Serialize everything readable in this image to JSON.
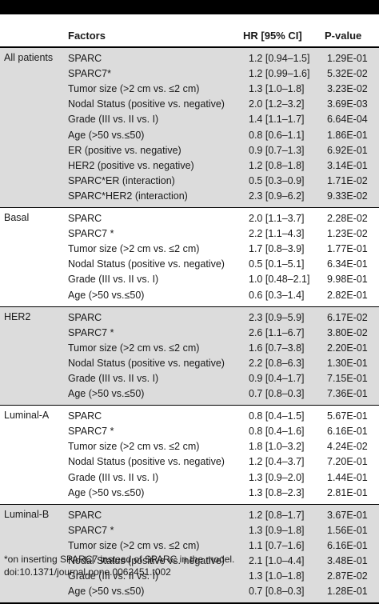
{
  "header": {
    "factors": "Factors",
    "hr": "HR [95% CI]",
    "p": "P-value"
  },
  "groups": [
    {
      "label": "All patients",
      "rows": [
        {
          "factor": "SPARC",
          "hr": "1.2 [0.94–1.5]",
          "p": "1.29E-01"
        },
        {
          "factor": "SPARC7*",
          "hr": "1.2 [0.99–1.6]",
          "p": "5.32E-02"
        },
        {
          "factor": "Tumor size (>2 cm vs. ≤2 cm)",
          "hr": "1.3 [1.0–1.8]",
          "p": "3.23E-02"
        },
        {
          "factor": "Nodal Status (positive vs. negative)",
          "hr": "2.0 [1.2–3.2]",
          "p": "3.69E-03"
        },
        {
          "factor": "Grade (III vs. II vs. I)",
          "hr": "1.4 [1.1–1.7]",
          "p": "6.64E-04"
        },
        {
          "factor": "Age (>50 vs.≤50)",
          "hr": "0.8 [0.6–1.1]",
          "p": "1.86E-01"
        },
        {
          "factor": "ER (positive vs. negative)",
          "hr": "0.9 [0.7–1.3]",
          "p": "6.92E-01"
        },
        {
          "factor": "HER2 (positive vs. negative)",
          "hr": "1.2 [0.8–1.8]",
          "p": "3.14E-01"
        },
        {
          "factor": "SPARC*ER (interaction)",
          "hr": "0.5 [0.3–0.9]",
          "p": "1.71E-02"
        },
        {
          "factor": "SPARC*HER2 (interaction)",
          "hr": "2.3 [0.9–6.2]",
          "p": "9.33E-02"
        }
      ]
    },
    {
      "label": "Basal",
      "rows": [
        {
          "factor": "SPARC",
          "hr": "2.0 [1.1–3.7]",
          "p": "2.28E-02"
        },
        {
          "factor": "SPARC7 *",
          "hr": "2.2 [1.1–4.3]",
          "p": "1.23E-02"
        },
        {
          "factor": "Tumor size (>2 cm vs. ≤2 cm)",
          "hr": "1.7 [0.8–3.9]",
          "p": "1.77E-01"
        },
        {
          "factor": "Nodal Status (positive vs. negative)",
          "hr": "0.5 [0.1–5.1]",
          "p": "6.34E-01"
        },
        {
          "factor": "Grade (III vs. II vs. I)",
          "hr": "1.0 [0.48–2.1]",
          "p": "9.98E-01"
        },
        {
          "factor": "Age (>50 vs.≤50)",
          "hr": "0.6 [0.3–1.4]",
          "p": "2.82E-01"
        }
      ]
    },
    {
      "label": "HER2",
      "rows": [
        {
          "factor": "SPARC",
          "hr": "2.3 [0.9–5.9]",
          "p": "6.17E-02"
        },
        {
          "factor": "SPARC7 *",
          "hr": "2.6 [1.1–6.7]",
          "p": "3.80E-02"
        },
        {
          "factor": "Tumor size (>2 cm vs. ≤2 cm)",
          "hr": "1.6 [0.7–3.8]",
          "p": "2.20E-01"
        },
        {
          "factor": "Nodal Status (positive vs. negative)",
          "hr": "2.2 [0.8–6.3]",
          "p": "1.30E-01"
        },
        {
          "factor": "Grade (III vs. II vs. I)",
          "hr": "0.9 [0.4–1.7]",
          "p": "7.15E-01"
        },
        {
          "factor": "Age (>50 vs.≤50)",
          "hr": "0.7 [0.8–0.3]",
          "p": "7.36E-01"
        }
      ]
    },
    {
      "label": "Luminal-A",
      "rows": [
        {
          "factor": "SPARC",
          "hr": "0.8 [0.4–1.5]",
          "p": "5.67E-01"
        },
        {
          "factor": "SPARC7 *",
          "hr": "0.8 [0.4–1.6]",
          "p": "6.16E-01"
        },
        {
          "factor": "Tumor size (>2 cm vs. ≤2 cm)",
          "hr": "1.8 [1.0–3.2]",
          "p": "4.24E-02"
        },
        {
          "factor": "Nodal Status (positive vs. negative)",
          "hr": "1.2 [0.4–3.7]",
          "p": "7.20E-01"
        },
        {
          "factor": "Grade (III vs. II vs. I)",
          "hr": "1.3 [0.9–2.0]",
          "p": "1.44E-01"
        },
        {
          "factor": "Age (>50 vs.≤50)",
          "hr": "1.3 [0.8–2.3]",
          "p": "2.81E-01"
        }
      ]
    },
    {
      "label": "Luminal-B",
      "rows": [
        {
          "factor": "SPARC",
          "hr": "1.2 [0.8–1.7]",
          "p": "3.67E-01"
        },
        {
          "factor": "SPARC7 *",
          "hr": "1.3 [0.9–1.8]",
          "p": "1.56E-01"
        },
        {
          "factor": "Tumor size (>2 cm vs. ≤2 cm)",
          "hr": "1.1 [0.7–1.6]",
          "p": "6.16E-01"
        },
        {
          "factor": "Nodal Status (positive vs. negative)",
          "hr": "2.1 [1.0–4.4]",
          "p": "3.48E-01"
        },
        {
          "factor": "Grade (III vs. II vs. I)",
          "hr": "1.3 [1.0–1.8]",
          "p": "2.87E-02"
        },
        {
          "factor": "Age (>50 vs.≤50)",
          "hr": "0.7 [0.8–0.3]",
          "p": "1.28E-01"
        }
      ]
    }
  ],
  "footnote": "*on inserting SPARC7 instead of SPARC in the model.",
  "doi": "doi:10.1371/journal.pone.0062451.t002"
}
